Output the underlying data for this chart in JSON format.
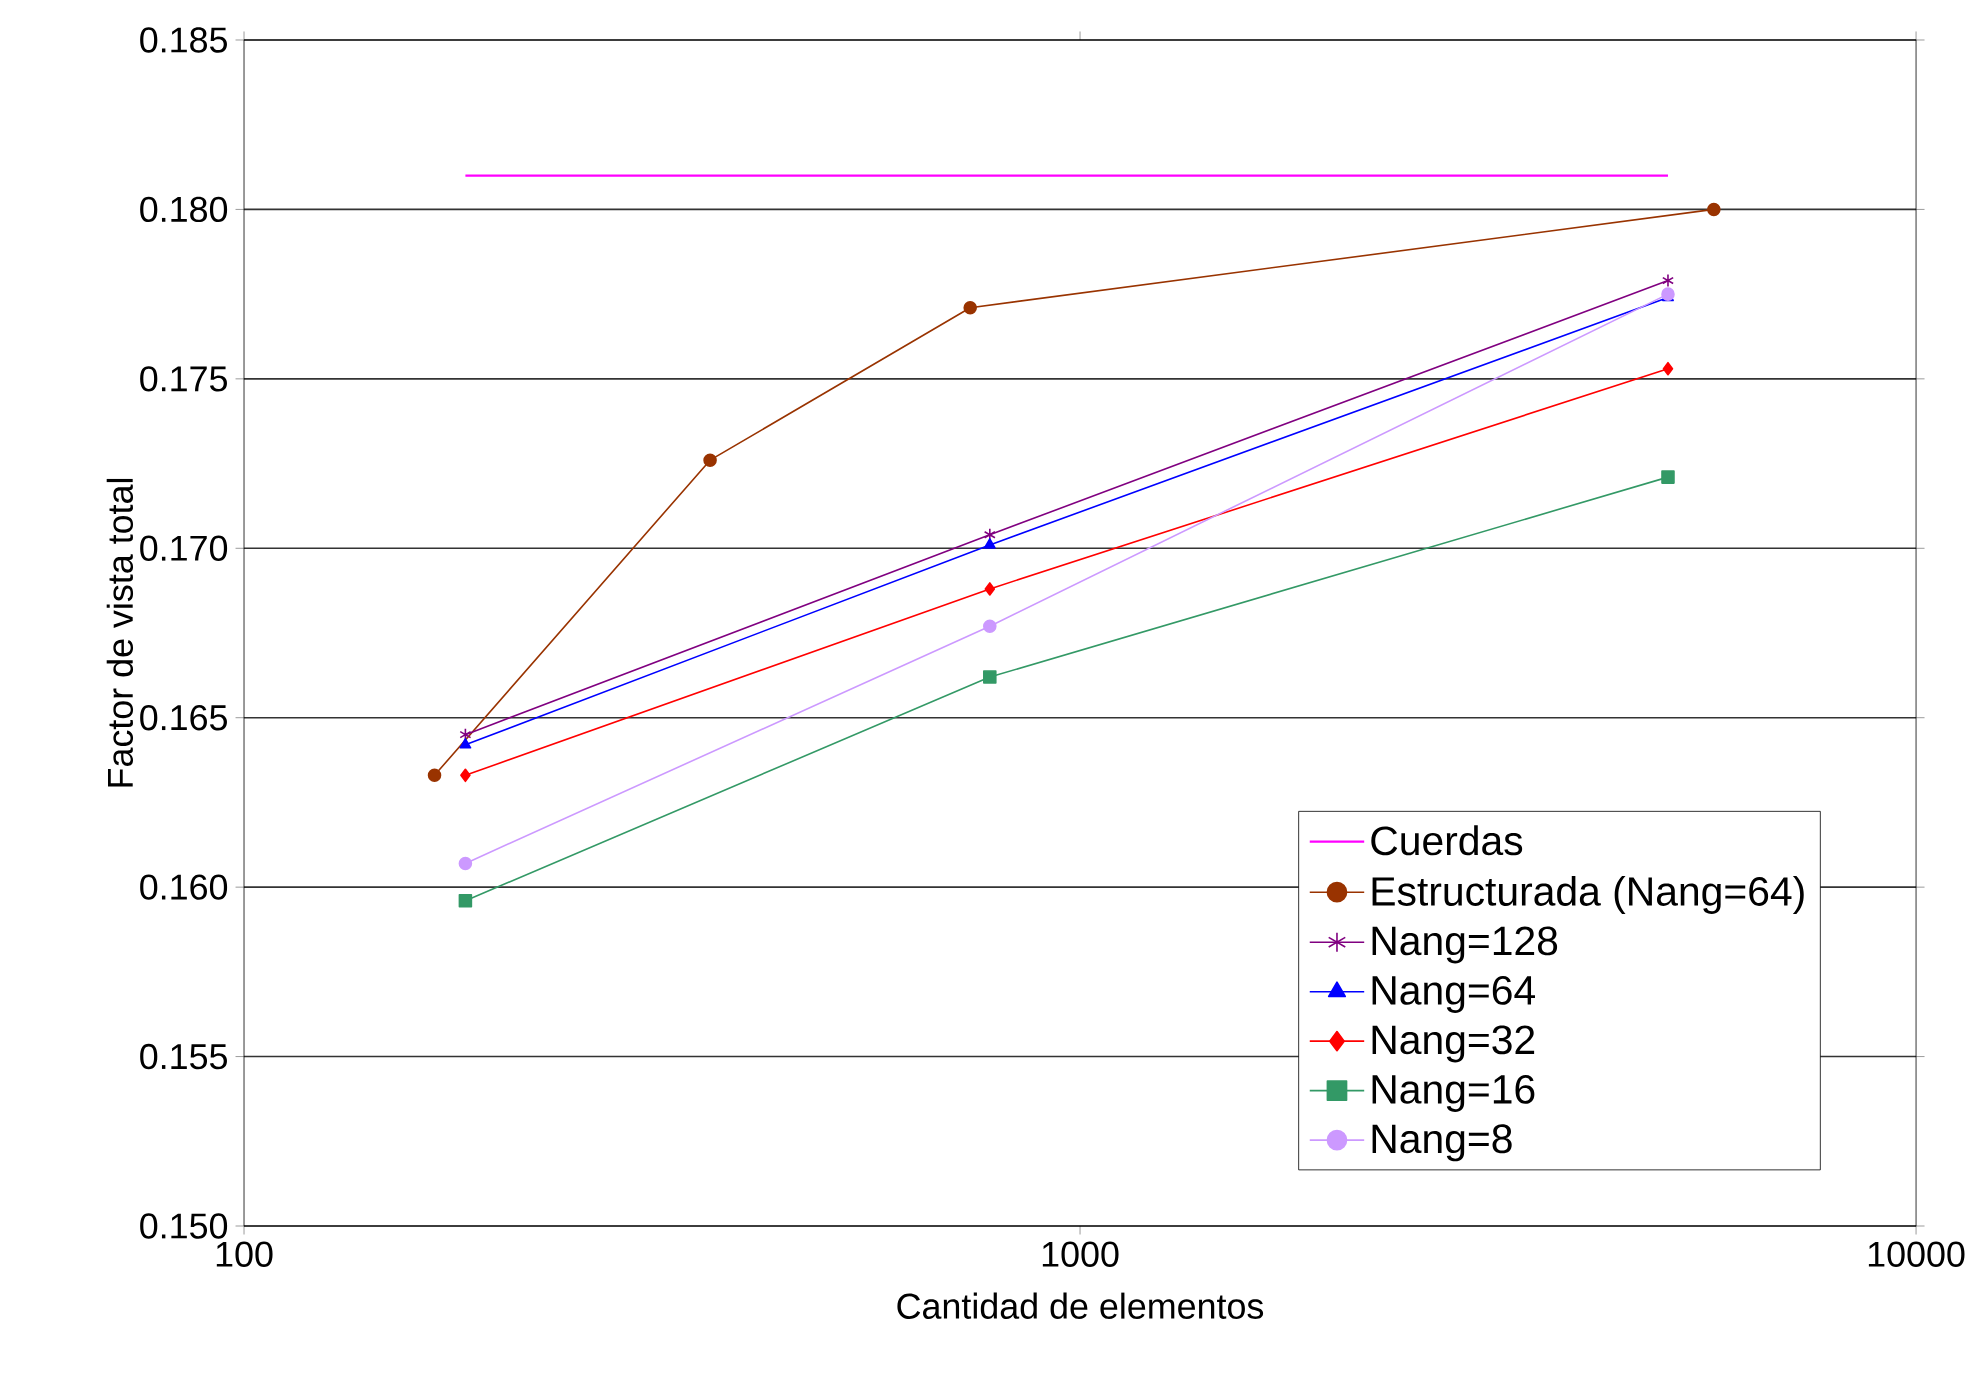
{
  "chart_data": {
    "type": "line",
    "xlabel": "Cantidad de elementos",
    "ylabel": "Factor de vista total",
    "log": "x",
    "grid": "y",
    "legend": "bottom right",
    "line_style": "solid",
    "xlim": [
      100,
      10000
    ],
    "xticks": [
      100,
      1000,
      10000
    ],
    "ylim": [
      0.15,
      0.185
    ],
    "yticks": [
      {
        "value": 0.15,
        "label": "0.150"
      },
      {
        "value": 0.155,
        "label": "0.155"
      },
      {
        "value": 0.16,
        "label": "0.160"
      },
      {
        "value": 0.165,
        "label": "0.165"
      },
      {
        "value": 0.17,
        "label": "0.170"
      },
      {
        "value": 0.175,
        "label": "0.175"
      },
      {
        "value": 0.18,
        "label": "0.180"
      },
      {
        "value": 0.185,
        "label": "0.185"
      }
    ],
    "series": [
      {
        "name": "Cuerdas",
        "color": "#ff00ff",
        "marker": "none",
        "x": [
          184,
          5050
        ],
        "values": [
          0.181,
          0.181
        ]
      },
      {
        "name": "Estructurada (Nang=64)",
        "color": "#993300",
        "marker": "circle",
        "x": [
          169,
          361,
          739,
          5730
        ],
        "values": [
          0.1633,
          0.1726,
          0.1771,
          0.18
        ]
      },
      {
        "name": "Nang=128",
        "color": "#800080",
        "marker": "cross",
        "x": [
          184,
          780,
          5050
        ],
        "values": [
          0.1645,
          0.1704,
          0.1779
        ]
      },
      {
        "name": "Nang=64",
        "color": "#0000ff",
        "marker": "triangle",
        "x": [
          184,
          780,
          5050
        ],
        "values": [
          0.1642,
          0.1701,
          0.1774
        ]
      },
      {
        "name": "Nang=32",
        "color": "#ff0000",
        "marker": "diamond",
        "x": [
          184,
          780,
          5050
        ],
        "values": [
          0.1633,
          0.1688,
          0.1753
        ]
      },
      {
        "name": "Nang=16",
        "color": "#339966",
        "marker": "square",
        "x": [
          184,
          780,
          5050
        ],
        "values": [
          0.1596,
          0.1662,
          0.1721
        ]
      },
      {
        "name": "Nang=8",
        "color": "#cc99ff",
        "marker": "circle",
        "x": [
          184,
          780,
          5050
        ],
        "values": [
          0.1607,
          0.1677,
          0.1775
        ]
      }
    ]
  }
}
